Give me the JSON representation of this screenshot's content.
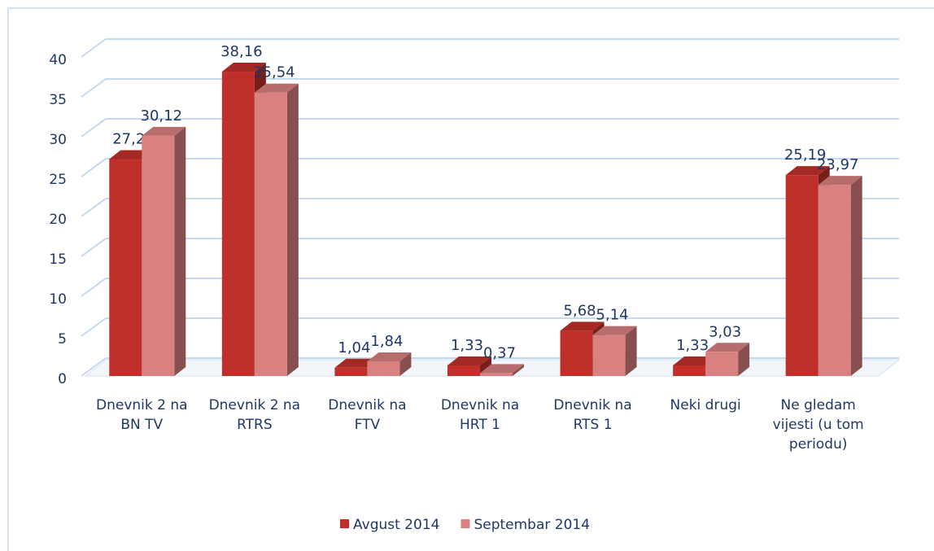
{
  "chart_data": {
    "type": "bar3d",
    "categories": [
      "Dnevnik 2 na BN TV",
      "Dnevnik 2 na RTRS",
      "Dnevnik na FTV",
      "Dnevnik na HRT 1",
      "Dnevnik na RTS 1",
      "Neki drugi",
      "Ne gledam vijesti (u tom periodu)"
    ],
    "series": [
      {
        "name": "Avgust 2014",
        "color": "#c0302a",
        "values": [
          27.2,
          38.16,
          1.04,
          1.33,
          5.68,
          1.33,
          25.19
        ],
        "value_labels": [
          "27,2",
          "38,16",
          "1,04",
          "1,33",
          "5,68",
          "1,33",
          "25,19"
        ]
      },
      {
        "name": "Septembar 2014",
        "color": "#d98080",
        "values": [
          30.12,
          35.54,
          1.84,
          0.37,
          5.14,
          3.03,
          23.97
        ],
        "value_labels": [
          "30,12",
          "35,54",
          "1,84",
          "0,37",
          "5,14",
          "3,03",
          "23,97"
        ]
      }
    ],
    "ylim": [
      0,
      40
    ],
    "yticks": [
      0,
      5,
      10,
      15,
      20,
      25,
      30,
      35,
      40
    ],
    "grid": true,
    "legend": "bottom"
  }
}
